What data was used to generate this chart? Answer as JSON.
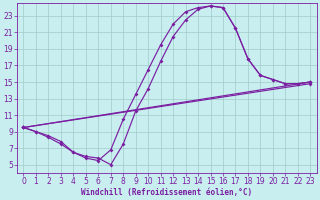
{
  "xlabel": "Windchill (Refroidissement éolien,°C)",
  "xlim": [
    -0.5,
    23.5
  ],
  "ylim": [
    4.0,
    24.5
  ],
  "yticks": [
    5,
    7,
    9,
    11,
    13,
    15,
    17,
    19,
    21,
    23
  ],
  "xticks": [
    0,
    1,
    2,
    3,
    4,
    5,
    6,
    7,
    8,
    9,
    10,
    11,
    12,
    13,
    14,
    15,
    16,
    17,
    18,
    19,
    20,
    21,
    22,
    23
  ],
  "bg_color": "#c8eef0",
  "grid_color": "#a0ccc8",
  "line_color": "#7b1fa2",
  "curve1_x": [
    0,
    1,
    2,
    3,
    4,
    5,
    6,
    7,
    8,
    9,
    10,
    11,
    12,
    13,
    14,
    15,
    16,
    17,
    18,
    19,
    20,
    21,
    22,
    23
  ],
  "curve1_y": [
    9.5,
    9.0,
    8.5,
    7.8,
    6.5,
    6.0,
    5.8,
    5.0,
    7.5,
    11.5,
    14.2,
    17.5,
    20.5,
    22.5,
    23.8,
    24.2,
    24.0,
    21.5,
    17.8,
    15.8,
    15.3,
    14.8,
    14.8,
    15.0
  ],
  "curve2_x": [
    0,
    1,
    2,
    3,
    4,
    5,
    6,
    7,
    8,
    9,
    10,
    11,
    12,
    13,
    14,
    15,
    16,
    17,
    18,
    19,
    20,
    21,
    22,
    23
  ],
  "curve2_y": [
    9.5,
    9.0,
    8.3,
    7.5,
    6.5,
    5.8,
    5.5,
    6.8,
    10.5,
    13.5,
    16.5,
    19.5,
    22.0,
    23.5,
    24.0,
    24.2,
    24.0,
    21.5,
    17.8,
    15.8,
    15.3,
    14.8,
    14.8,
    15.0
  ],
  "curve3_x": [
    0,
    23
  ],
  "curve3_y": [
    9.5,
    15.0
  ],
  "curve4_x": [
    0,
    23
  ],
  "curve4_y": [
    9.5,
    14.8
  ],
  "tick_fontsize": 5.5,
  "xlabel_fontsize": 5.5
}
